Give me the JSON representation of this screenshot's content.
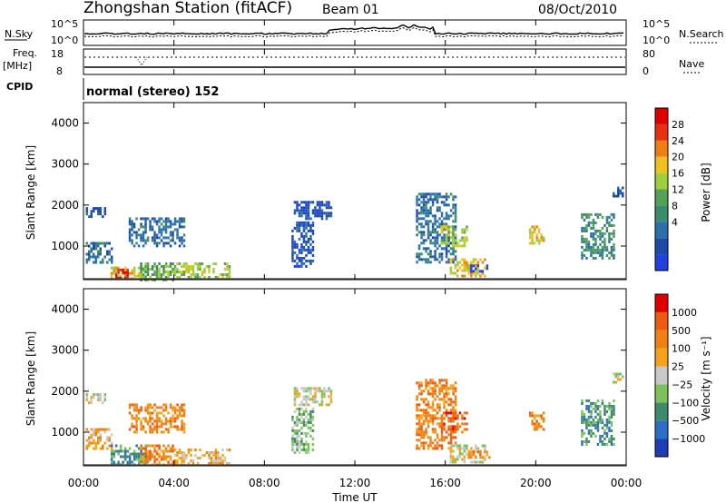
{
  "header": {
    "station": "Zhongshan Station (fitACF)",
    "beam": "Beam 01",
    "date": "08/Oct/2010"
  },
  "strip": {
    "nsky_label": "N.Sky",
    "nsearch_label": "N.Search",
    "freq_label": "Freq.",
    "freq_unit": "[MHz]",
    "nave_label": "Nave",
    "cpid_label": "CPID",
    "cpid_text": "normal (stereo) 152",
    "noise_ticks": [
      "10^5",
      "10^0"
    ],
    "freq_ticks": [
      "18",
      "8"
    ],
    "nave_ticks": [
      "80",
      "0"
    ]
  },
  "colors": {
    "scale": [
      "#2040e0",
      "#1e4aa8",
      "#2a6fae",
      "#3b8c6a",
      "#55a15a",
      "#9fcf3a",
      "#f0c020",
      "#f07f10",
      "#e83010",
      "#e00000"
    ],
    "velocity": [
      "#1e3cb4",
      "#2d6ec8",
      "#3f8a6a",
      "#7cc25a",
      "#c8c8c8",
      "#f6a21a",
      "#f08010",
      "#f05a10",
      "#e00000"
    ]
  },
  "chart_data": [
    {
      "type": "heatmap",
      "name": "power",
      "ylabel": "Slant Range [km]",
      "ylim": [
        180,
        4500
      ],
      "xlim": [
        0,
        24
      ],
      "yticks": [
        "4000",
        "3000",
        "2000",
        "1000"
      ],
      "colorbar_label": "Power [dB]",
      "colorbar_ticks": [
        "28",
        "24",
        "20",
        "16",
        "12",
        "8",
        "4"
      ],
      "clusters": [
        {
          "t0": 0.1,
          "t1": 1.0,
          "r0": 1700,
          "r1": 1950,
          "level": 1
        },
        {
          "t0": 0.1,
          "t1": 1.3,
          "r0": 600,
          "r1": 1100,
          "level": 2
        },
        {
          "t0": 1.2,
          "t1": 2.8,
          "r0": 200,
          "r1": 500,
          "level": 6
        },
        {
          "t0": 1.4,
          "t1": 2.0,
          "r0": 200,
          "r1": 450,
          "level": 9
        },
        {
          "t0": 2.5,
          "t1": 4.0,
          "r0": 200,
          "r1": 600,
          "level": 4
        },
        {
          "t0": 4.0,
          "t1": 6.5,
          "r0": 250,
          "r1": 600,
          "level": 5
        },
        {
          "t0": 2.0,
          "t1": 4.5,
          "r0": 1000,
          "r1": 1700,
          "level": 2
        },
        {
          "t0": 9.3,
          "t1": 11.0,
          "r0": 1700,
          "r1": 2100,
          "level": 1
        },
        {
          "t0": 9.2,
          "t1": 10.2,
          "r0": 500,
          "r1": 1600,
          "level": 1
        },
        {
          "t0": 14.7,
          "t1": 16.5,
          "r0": 600,
          "r1": 2300,
          "level": 2
        },
        {
          "t0": 15.8,
          "t1": 17.0,
          "r0": 1000,
          "r1": 1500,
          "level": 5
        },
        {
          "t0": 16.2,
          "t1": 17.8,
          "r0": 250,
          "r1": 700,
          "level": 6
        },
        {
          "t0": 17.0,
          "t1": 18.0,
          "r0": 400,
          "r1": 550,
          "level": 0
        },
        {
          "t0": 19.7,
          "t1": 20.4,
          "r0": 1100,
          "r1": 1500,
          "level": 6
        },
        {
          "t0": 22.0,
          "t1": 23.5,
          "r0": 700,
          "r1": 1800,
          "level": 3
        },
        {
          "t0": 23.4,
          "t1": 23.9,
          "r0": 2200,
          "r1": 2450,
          "level": 1
        }
      ]
    },
    {
      "type": "heatmap",
      "name": "velocity",
      "ylabel": "Slant Range [km]",
      "xlabel": "Time UT",
      "ylim": [
        180,
        4500
      ],
      "xlim": [
        0,
        24
      ],
      "yticks": [
        "4000",
        "3000",
        "2000",
        "1000"
      ],
      "xticks": [
        "00:00",
        "04:00",
        "08:00",
        "12:00",
        "16:00",
        "20:00",
        "00:00"
      ],
      "colorbar_label": "Velocity [m s⁻¹]",
      "colorbar_ticks": [
        "1000",
        "500",
        "100",
        "25",
        "−25",
        "−100",
        "−500",
        "−1000"
      ],
      "clusters": [
        {
          "t0": 0.1,
          "t1": 1.0,
          "r0": 1700,
          "r1": 1950,
          "level": 4
        },
        {
          "t0": 0.1,
          "t1": 1.3,
          "r0": 600,
          "r1": 1100,
          "level": 5
        },
        {
          "t0": 1.2,
          "t1": 2.8,
          "r0": 200,
          "r1": 700,
          "level": 2
        },
        {
          "t0": 2.5,
          "t1": 4.0,
          "r0": 200,
          "r1": 700,
          "level": 6
        },
        {
          "t0": 4.0,
          "t1": 6.5,
          "r0": 250,
          "r1": 600,
          "level": 5
        },
        {
          "t0": 2.0,
          "t1": 4.5,
          "r0": 1000,
          "r1": 1700,
          "level": 6
        },
        {
          "t0": 9.3,
          "t1": 11.0,
          "r0": 1700,
          "r1": 2100,
          "level": 4
        },
        {
          "t0": 9.2,
          "t1": 10.2,
          "r0": 500,
          "r1": 1600,
          "level": 3
        },
        {
          "t0": 14.7,
          "t1": 16.5,
          "r0": 600,
          "r1": 2300,
          "level": 6
        },
        {
          "t0": 15.8,
          "t1": 17.0,
          "r0": 1000,
          "r1": 1500,
          "level": 7
        },
        {
          "t0": 16.2,
          "t1": 17.8,
          "r0": 250,
          "r1": 700,
          "level": 4
        },
        {
          "t0": 17.0,
          "t1": 18.0,
          "r0": 400,
          "r1": 550,
          "level": 6
        },
        {
          "t0": 19.7,
          "t1": 20.4,
          "r0": 1100,
          "r1": 1500,
          "level": 6
        },
        {
          "t0": 22.0,
          "t1": 23.5,
          "r0": 700,
          "r1": 1800,
          "level": 2
        },
        {
          "t0": 23.4,
          "t1": 23.9,
          "r0": 2200,
          "r1": 2450,
          "level": 4
        }
      ]
    }
  ]
}
